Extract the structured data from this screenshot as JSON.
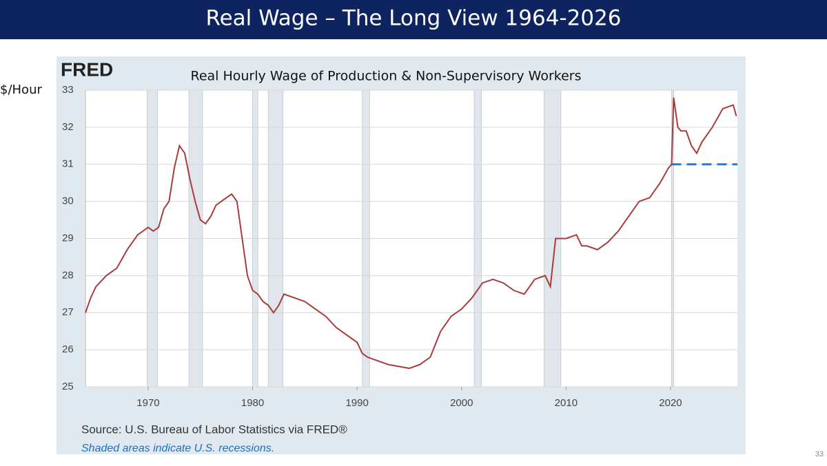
{
  "slide": {
    "title": "Real Wage – The Long View 1964-2026",
    "page_number": "33"
  },
  "chart_data": {
    "type": "line",
    "logo": "FRED",
    "title": "Real Hourly Wage of Production & Non-Supervisory Workers",
    "y_label": "$/Hour",
    "source": "Source: U.S. Bureau of Labor Statistics via FRED®",
    "note": "Shaded areas indicate U.S. recessions.",
    "color": "#a83a3a",
    "x": [
      1964.0,
      1964.5,
      1965,
      1966,
      1967,
      1968,
      1969,
      1970,
      1970.5,
      1971,
      1971.5,
      1972,
      1972.5,
      1973,
      1973.5,
      1974,
      1974.5,
      1975,
      1975.5,
      1976,
      1976.5,
      1977,
      1977.5,
      1978,
      1978.5,
      1979,
      1979.5,
      1980,
      1980.5,
      1981,
      1981.5,
      1982,
      1982.5,
      1983,
      1984,
      1985,
      1986,
      1987,
      1988,
      1989,
      1990,
      1990.5,
      1991,
      1992,
      1993,
      1994,
      1995,
      1996,
      1997,
      1998,
      1999,
      2000,
      2001,
      2002,
      2003,
      2004,
      2005,
      2006,
      2007,
      2008,
      2008.5,
      2009,
      2010,
      2011,
      2011.5,
      2012,
      2013,
      2014,
      2015,
      2016,
      2017,
      2018,
      2019,
      2019.8,
      2020.1,
      2020.3,
      2020.7,
      2021,
      2021.5,
      2022,
      2022.5,
      2023,
      2024,
      2025,
      2026,
      2026.3
    ],
    "values": [
      27.0,
      27.4,
      27.7,
      28.0,
      28.2,
      28.7,
      29.1,
      29.3,
      29.2,
      29.3,
      29.8,
      30.0,
      30.9,
      31.5,
      31.3,
      30.6,
      30.0,
      29.5,
      29.4,
      29.6,
      29.9,
      30.0,
      30.1,
      30.2,
      30.0,
      29.0,
      28.0,
      27.6,
      27.5,
      27.3,
      27.2,
      27.0,
      27.2,
      27.5,
      27.4,
      27.3,
      27.1,
      26.9,
      26.6,
      26.4,
      26.2,
      25.9,
      25.8,
      25.7,
      25.6,
      25.55,
      25.5,
      25.6,
      25.8,
      26.5,
      26.9,
      27.1,
      27.4,
      27.8,
      27.9,
      27.8,
      27.6,
      27.5,
      27.9,
      28.0,
      27.7,
      29.0,
      29.0,
      29.1,
      28.8,
      28.8,
      28.7,
      28.9,
      29.2,
      29.6,
      30.0,
      30.1,
      30.5,
      30.9,
      31.0,
      32.8,
      32.0,
      31.9,
      31.9,
      31.5,
      31.3,
      31.6,
      32.0,
      32.5,
      32.6,
      32.3
    ],
    "recessions": [
      [
        1969.9,
        1970.9
      ],
      [
        1973.9,
        1975.2
      ],
      [
        1980.0,
        1980.5
      ],
      [
        1981.5,
        1982.9
      ],
      [
        1990.5,
        1991.2
      ],
      [
        2001.2,
        2001.9
      ],
      [
        2007.9,
        2009.5
      ],
      [
        2020.1,
        2020.3
      ]
    ],
    "reference_line": {
      "y": 31,
      "x_start": 2020.1,
      "color": "#1a7fd4"
    },
    "xlim": [
      1964,
      2026.4
    ],
    "xticks": [
      1970,
      1980,
      1990,
      2000,
      2010,
      2020
    ],
    "ylim": [
      25,
      33
    ],
    "yticks": [
      25,
      26,
      27,
      28,
      29,
      30,
      31,
      32,
      33
    ],
    "grid": true
  }
}
